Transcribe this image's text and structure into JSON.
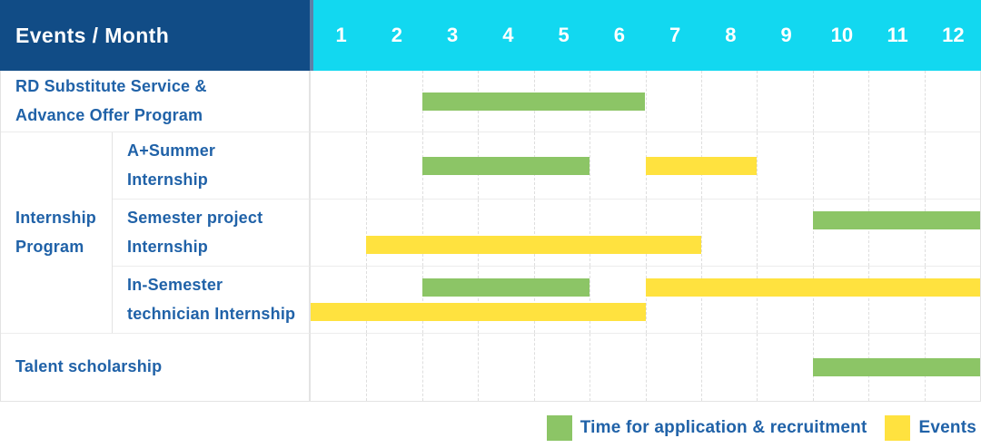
{
  "header": {
    "title": "Events / Month"
  },
  "colors": {
    "header_bg": "#114c86",
    "months_bg": "#12d8f0",
    "divider": "#5e80a8",
    "label_text": "#2062a8",
    "green_color": "#8cc566",
    "yellow_color": "#ffe23f",
    "grid_dash": "#dedede",
    "row_border": "#ececec",
    "cell_border": "#e3e3e3",
    "outer_border": "#e3e3e3"
  },
  "chart_data": {
    "type": "gantt",
    "title": "Events / Month",
    "x_ticks": [
      "1",
      "2",
      "3",
      "4",
      "5",
      "6",
      "7",
      "8",
      "9",
      "10",
      "11",
      "12"
    ],
    "x_range": [
      1,
      12
    ],
    "grid": "dashed-vertical-month-lines",
    "legend_position": "bottom-right",
    "bar_types": {
      "recruitment": {
        "legend": "Time for application & recruitment",
        "color": "#8cc566"
      },
      "event": {
        "legend": "Events",
        "color": "#ffe23f"
      }
    },
    "groups": [
      {
        "label_lines": [
          "Internship",
          "Program"
        ]
      }
    ],
    "rows": [
      {
        "label_lines": [
          "RD Substitute Service &",
          "Advance Offer Program"
        ],
        "group_index": null,
        "lanes": [
          [
            {
              "type": "recruitment",
              "start_month": 3,
              "end_month": 6
            }
          ]
        ]
      },
      {
        "label_lines": [
          "A+Summer",
          "Internship"
        ],
        "group_index": 0,
        "lanes": [
          [
            {
              "type": "recruitment",
              "start_month": 3,
              "end_month": 5
            },
            {
              "type": "event",
              "start_month": 7,
              "end_month": 8
            }
          ]
        ]
      },
      {
        "label_lines": [
          "Semester project",
          "Internship"
        ],
        "group_index": 0,
        "lanes": [
          [
            {
              "type": "recruitment",
              "start_month": 10,
              "end_month": 12
            }
          ],
          [
            {
              "type": "event",
              "start_month": 2,
              "end_month": 7
            }
          ]
        ]
      },
      {
        "label_lines": [
          "In-Semester",
          "technician Internship"
        ],
        "group_index": 0,
        "lanes": [
          [
            {
              "type": "recruitment",
              "start_month": 3,
              "end_month": 5
            },
            {
              "type": "event",
              "start_month": 7,
              "end_month": 12
            }
          ],
          [
            {
              "type": "event",
              "start_month": 1,
              "end_month": 6
            }
          ]
        ]
      },
      {
        "label_lines": [
          "Talent scholarship"
        ],
        "group_index": null,
        "lanes": [
          [
            {
              "type": "recruitment",
              "start_month": 10,
              "end_month": 12
            }
          ]
        ]
      }
    ]
  },
  "legend": {
    "items": [
      {
        "type": "recruitment",
        "label": "Time for application & recruitment"
      },
      {
        "type": "event",
        "label": "Events"
      }
    ]
  }
}
